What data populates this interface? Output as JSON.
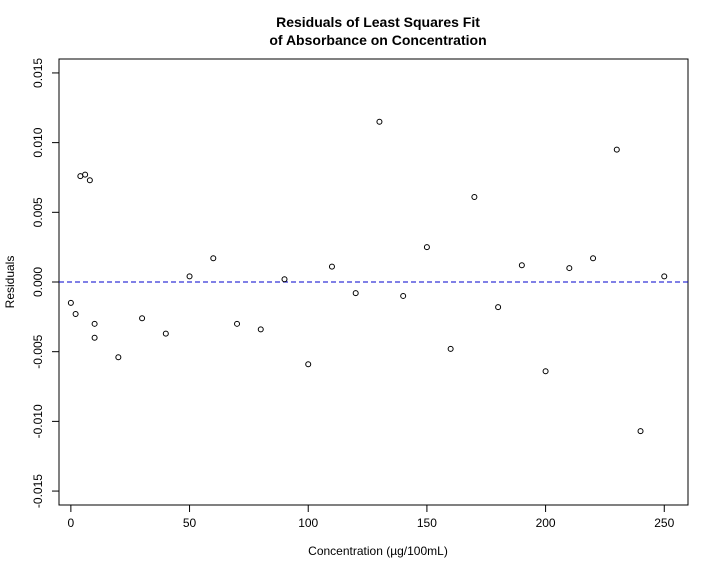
{
  "chart_data": {
    "type": "scatter",
    "title": "Residuals of Least Squares Fit",
    "subtitle": "of Absorbance on Concentration",
    "xlabel": "Concentration (µg/100mL)",
    "ylabel": "Residuals",
    "xlim": [
      -5,
      260
    ],
    "ylim": [
      -0.016,
      0.016
    ],
    "x_ticks": [
      0,
      50,
      100,
      150,
      200,
      250
    ],
    "x_tick_labels": [
      "0",
      "50",
      "100",
      "150",
      "200",
      "250"
    ],
    "y_ticks": [
      -0.015,
      -0.01,
      -0.005,
      0,
      0.005,
      0.01,
      0.015
    ],
    "y_tick_labels": [
      "-0.015",
      "-0.010",
      "-0.005",
      "0.000",
      "0.005",
      "0.010",
      "0.015"
    ],
    "grid": false,
    "reference_line": {
      "y": 0,
      "style": "dashed",
      "color": "#0000cc"
    },
    "marker": "open-circle",
    "points": [
      {
        "x": 0,
        "y": -0.0015
      },
      {
        "x": 2,
        "y": -0.0023
      },
      {
        "x": 4,
        "y": 0.0076
      },
      {
        "x": 6,
        "y": 0.0077
      },
      {
        "x": 8,
        "y": 0.0073
      },
      {
        "x": 10,
        "y": -0.003
      },
      {
        "x": 10,
        "y": -0.004
      },
      {
        "x": 20,
        "y": -0.0054
      },
      {
        "x": 30,
        "y": -0.0026
      },
      {
        "x": 40,
        "y": -0.0037
      },
      {
        "x": 50,
        "y": 0.0004
      },
      {
        "x": 60,
        "y": 0.0017
      },
      {
        "x": 70,
        "y": -0.003
      },
      {
        "x": 80,
        "y": -0.0034
      },
      {
        "x": 90,
        "y": 0.0002
      },
      {
        "x": 100,
        "y": -0.0059
      },
      {
        "x": 110,
        "y": 0.0011
      },
      {
        "x": 120,
        "y": -0.0008
      },
      {
        "x": 130,
        "y": 0.0115
      },
      {
        "x": 140,
        "y": -0.001
      },
      {
        "x": 150,
        "y": 0.0025
      },
      {
        "x": 160,
        "y": -0.0048
      },
      {
        "x": 170,
        "y": 0.0061
      },
      {
        "x": 180,
        "y": -0.0018
      },
      {
        "x": 190,
        "y": 0.0012
      },
      {
        "x": 200,
        "y": -0.0064
      },
      {
        "x": 210,
        "y": 0.001
      },
      {
        "x": 220,
        "y": 0.0017
      },
      {
        "x": 230,
        "y": 0.0095
      },
      {
        "x": 240,
        "y": -0.0107
      },
      {
        "x": 250,
        "y": 0.0004
      }
    ]
  }
}
